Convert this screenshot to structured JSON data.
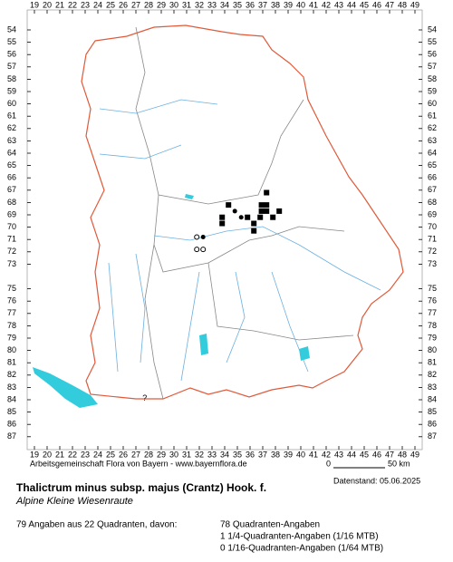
{
  "map": {
    "cols": [
      19,
      20,
      21,
      22,
      23,
      24,
      25,
      26,
      27,
      28,
      29,
      30,
      31,
      32,
      33,
      34,
      35,
      36,
      37,
      38,
      39,
      40,
      41,
      42,
      43,
      44,
      45,
      46,
      47,
      48,
      49
    ],
    "rows": [
      54,
      55,
      56,
      57,
      58,
      59,
      60,
      61,
      62,
      63,
      64,
      65,
      66,
      67,
      68,
      69,
      70,
      71,
      72,
      73,
      75,
      76,
      77,
      78,
      79,
      80,
      81,
      82,
      83,
      84,
      85,
      86,
      87
    ],
    "records": [
      {
        "col": 37.3,
        "row": 67.2,
        "symbol": "square"
      },
      {
        "col": 34.3,
        "row": 68.2,
        "symbol": "square"
      },
      {
        "col": 36.9,
        "row": 68.2,
        "symbol": "square"
      },
      {
        "col": 37.3,
        "row": 68.2,
        "symbol": "square"
      },
      {
        "col": 36.9,
        "row": 68.7,
        "symbol": "square"
      },
      {
        "col": 37.3,
        "row": 68.7,
        "symbol": "square"
      },
      {
        "col": 38.3,
        "row": 68.7,
        "symbol": "square"
      },
      {
        "col": 33.8,
        "row": 69.2,
        "symbol": "square"
      },
      {
        "col": 35.8,
        "row": 69.2,
        "symbol": "square"
      },
      {
        "col": 36.8,
        "row": 69.2,
        "symbol": "square"
      },
      {
        "col": 37.8,
        "row": 69.2,
        "symbol": "square"
      },
      {
        "col": 33.8,
        "row": 69.7,
        "symbol": "square"
      },
      {
        "col": 36.3,
        "row": 69.7,
        "symbol": "square"
      },
      {
        "col": 36.3,
        "row": 70.3,
        "symbol": "square"
      },
      {
        "col": 34.8,
        "row": 68.7,
        "symbol": "dot"
      },
      {
        "col": 35.3,
        "row": 69.2,
        "symbol": "dot"
      },
      {
        "col": 32.3,
        "row": 70.8,
        "symbol": "dot"
      },
      {
        "col": 31.8,
        "row": 70.8,
        "symbol": "circle"
      },
      {
        "col": 31.8,
        "row": 71.8,
        "symbol": "circle"
      },
      {
        "col": 32.3,
        "row": 71.8,
        "symbol": "circle"
      }
    ],
    "annotation": {
      "text": "?",
      "col": 27.7,
      "row": 83.9
    }
  },
  "footer": {
    "credit": "Arbeitsgemeinschaft Flora von Bayern - www.bayernflora.de",
    "scale_start": "0",
    "scale_end": "50 km",
    "date": "Datenstand: 05.06.2025"
  },
  "species": {
    "title": "Thalictrum minus subsp. majus (Crantz) Hook. f.",
    "subtitle": "Alpine Kleine Wiesenraute"
  },
  "stats": {
    "summary": "79 Angaben aus 22 Quadranten, davon:",
    "lines": [
      "78 Quadranten-Angaben",
      "1 1/4-Quadranten-Angaben (1/16 MTB)",
      "0 1/16-Quadranten-Angaben (1/64 MTB)"
    ]
  }
}
